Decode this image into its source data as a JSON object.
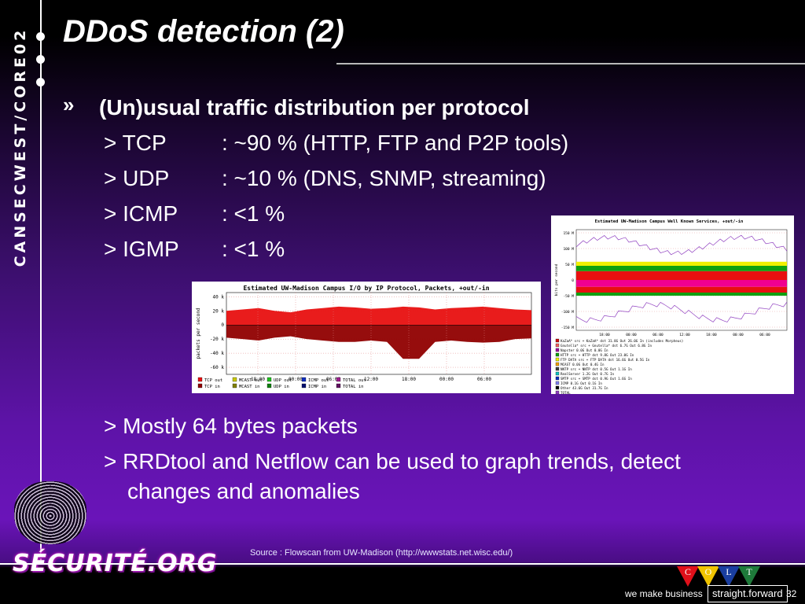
{
  "sidebar": {
    "vertical_text": "CANSECWEST/CORE02"
  },
  "slide": {
    "title": "DDoS detection (2)",
    "bullet_marker": "»",
    "heading": "(Un)usual traffic distribution per protocol",
    "protocols": [
      {
        "marker": ">",
        "name": "TCP",
        "desc": ": ~90 % (HTTP, FTP and P2P tools)"
      },
      {
        "marker": ">",
        "name": "UDP",
        "desc": ": ~10 % (DNS, SNMP, streaming)"
      },
      {
        "marker": ">",
        "name": "ICMP",
        "desc": ": <1 %"
      },
      {
        "marker": ">",
        "name": "IGMP",
        "desc": ": <1 %"
      }
    ],
    "notes": [
      "> Mostly 64 bytes packets",
      "> RRDtool and Netflow can be used to graph trends, detect",
      "changes and anomalies"
    ],
    "source": "Source : Flowscan from UW-Madison (http://wwwstats.net.wisc.edu/)"
  },
  "footer": {
    "logo": "SÉCURITÉ.ORG",
    "colt_letters": [
      "C",
      "O",
      "L",
      "T"
    ],
    "colt_colors": [
      "#e0101a",
      "#f0c400",
      "#1a3ea0",
      "#1e7a3a"
    ],
    "tagline": "we make business",
    "tagline_box": "straight.forward",
    "page_number": "32"
  },
  "chart_data": [
    {
      "type": "area",
      "title": "Estimated UW-Madison Campus I/O by IP Protocol, Packets, +out/-in",
      "ylabel": "packets per second",
      "y_ticks": [
        "40 k",
        "20 k",
        "0",
        "-20 k",
        "-40 k",
        "-60 k"
      ],
      "x_ticks": [
        "18:00",
        "00:00",
        "06:00",
        "12:00",
        "18:00",
        "00:00",
        "06:00"
      ],
      "legend": [
        {
          "label": "TCP out",
          "color": "#e81010"
        },
        {
          "label": "MCAST out",
          "color": "#c8c800"
        },
        {
          "label": "UDP out",
          "color": "#20c020"
        },
        {
          "label": "ICMP out",
          "color": "#1030c0"
        },
        {
          "label": "TOTAL out",
          "color": "#a02090"
        },
        {
          "label": "TCP in",
          "color": "#900000"
        },
        {
          "label": "MCAST in",
          "color": "#808000"
        },
        {
          "label": "UDP in",
          "color": "#108010"
        },
        {
          "label": "ICMP in",
          "color": "#001070"
        },
        {
          "label": "TOTAL in",
          "color": "#601060"
        }
      ],
      "series": [
        {
          "name": "TCP out",
          "values": [
            20,
            22,
            24,
            20,
            18,
            22,
            24,
            26,
            25,
            23,
            24,
            26,
            25,
            22,
            24,
            25,
            26,
            24,
            22,
            21
          ]
        },
        {
          "name": "TCP in",
          "values": [
            -18,
            -20,
            -22,
            -18,
            -16,
            -20,
            -22,
            -24,
            -24,
            -22,
            -24,
            -48,
            -48,
            -24,
            -22,
            -24,
            -25,
            -24,
            -20,
            -19
          ]
        }
      ]
    },
    {
      "type": "area",
      "title": "Estimated UW-Madison Campus Well Known Services, +out/-in",
      "ylabel": "bits per second",
      "y_ticks": [
        "150 M",
        "100 M",
        "50 M",
        "0",
        "-50 M",
        "-100 M",
        "-150 M"
      ],
      "x_ticks": [
        "18:00",
        "00:00",
        "06:00",
        "12:00",
        "18:00",
        "00:00",
        "06:00"
      ],
      "legend": [
        {
          "label": "KaZaA* src",
          "text": "+ KaZaA* dst 31.8G Out 26.0G In (includes Morpheus)",
          "color": "#d01010"
        },
        {
          "label": "Gnutella* src",
          "text": "+ Gnutella* dst 6.7G Out 6.8G In",
          "color": "#f06060"
        },
        {
          "label": "Napster",
          "text": "0.0G Out 0.0G In",
          "color": "#a000a0"
        },
        {
          "label": "HTTP src",
          "text": "+ HTTP dst 9.8G Out 23.0G In",
          "color": "#10a010"
        },
        {
          "label": "FTP DATA src",
          "text": "+ FTP DATA dst 16.6G Out 0.5G In",
          "color": "#f0f000"
        },
        {
          "label": "MCAST",
          "text": "0.0G Out 0.4G In",
          "color": "#f0a000"
        },
        {
          "label": "NNTP src",
          "text": "+ NNTP dst 0.5G Out 1.1G In",
          "color": "#404040"
        },
        {
          "label": "RealServer",
          "text": "1.2G Out 0.7G In",
          "color": "#10c0c0"
        },
        {
          "label": "SMTP src",
          "text": "+ SMTP dst 0.9G Out 1.6G In",
          "color": "#1030c0"
        },
        {
          "label": "ICMP",
          "text": "0.1G Out 0.1G In",
          "color": "#8080f0"
        },
        {
          "label": "Other",
          "text": "43.6G Out 31.7G In",
          "color": "#000000"
        },
        {
          "label": "TOTAL",
          "text": "",
          "color": "#9040c0"
        }
      ]
    }
  ]
}
